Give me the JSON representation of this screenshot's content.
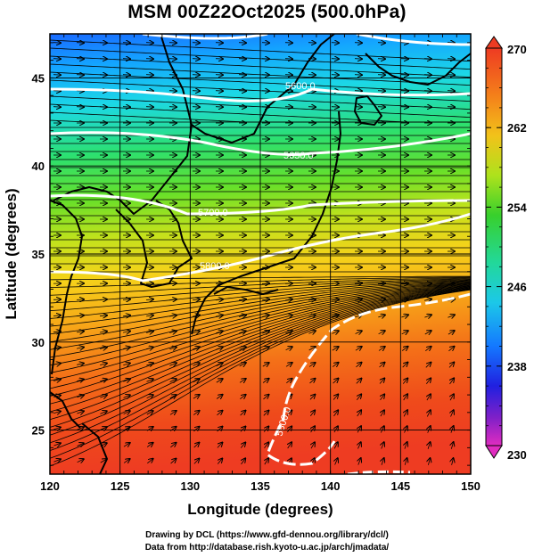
{
  "title": "MSM 00Z22Oct2025 (500.0hPa)",
  "x_axis": {
    "label": "Longitude (degrees)",
    "ticks": [
      120,
      125,
      130,
      135,
      140,
      145,
      150
    ],
    "range": [
      120,
      150
    ]
  },
  "y_axis": {
    "label": "Latitude  (degrees)",
    "ticks": [
      25,
      30,
      35,
      40,
      45
    ],
    "range": [
      22.5,
      47.5
    ]
  },
  "colorbar": {
    "ticks": [
      270,
      262,
      254,
      246,
      238,
      230
    ],
    "range": [
      230,
      270
    ]
  },
  "contour_labels": [
    "5600.0",
    "5650.0",
    "5700.0",
    "5800.0",
    "5800.0"
  ],
  "credits": [
    "Drawing by DCL (https://www.gfd-dennou.org/library/dcl/)",
    "Data from http://database.rish.kyoto-u.ac.jp/arch/jmadata/"
  ],
  "colors": {
    "warm": "#e8401a",
    "cold": "#0a44ff",
    "mid": "#22cc22",
    "contour": "#ffffff"
  }
}
